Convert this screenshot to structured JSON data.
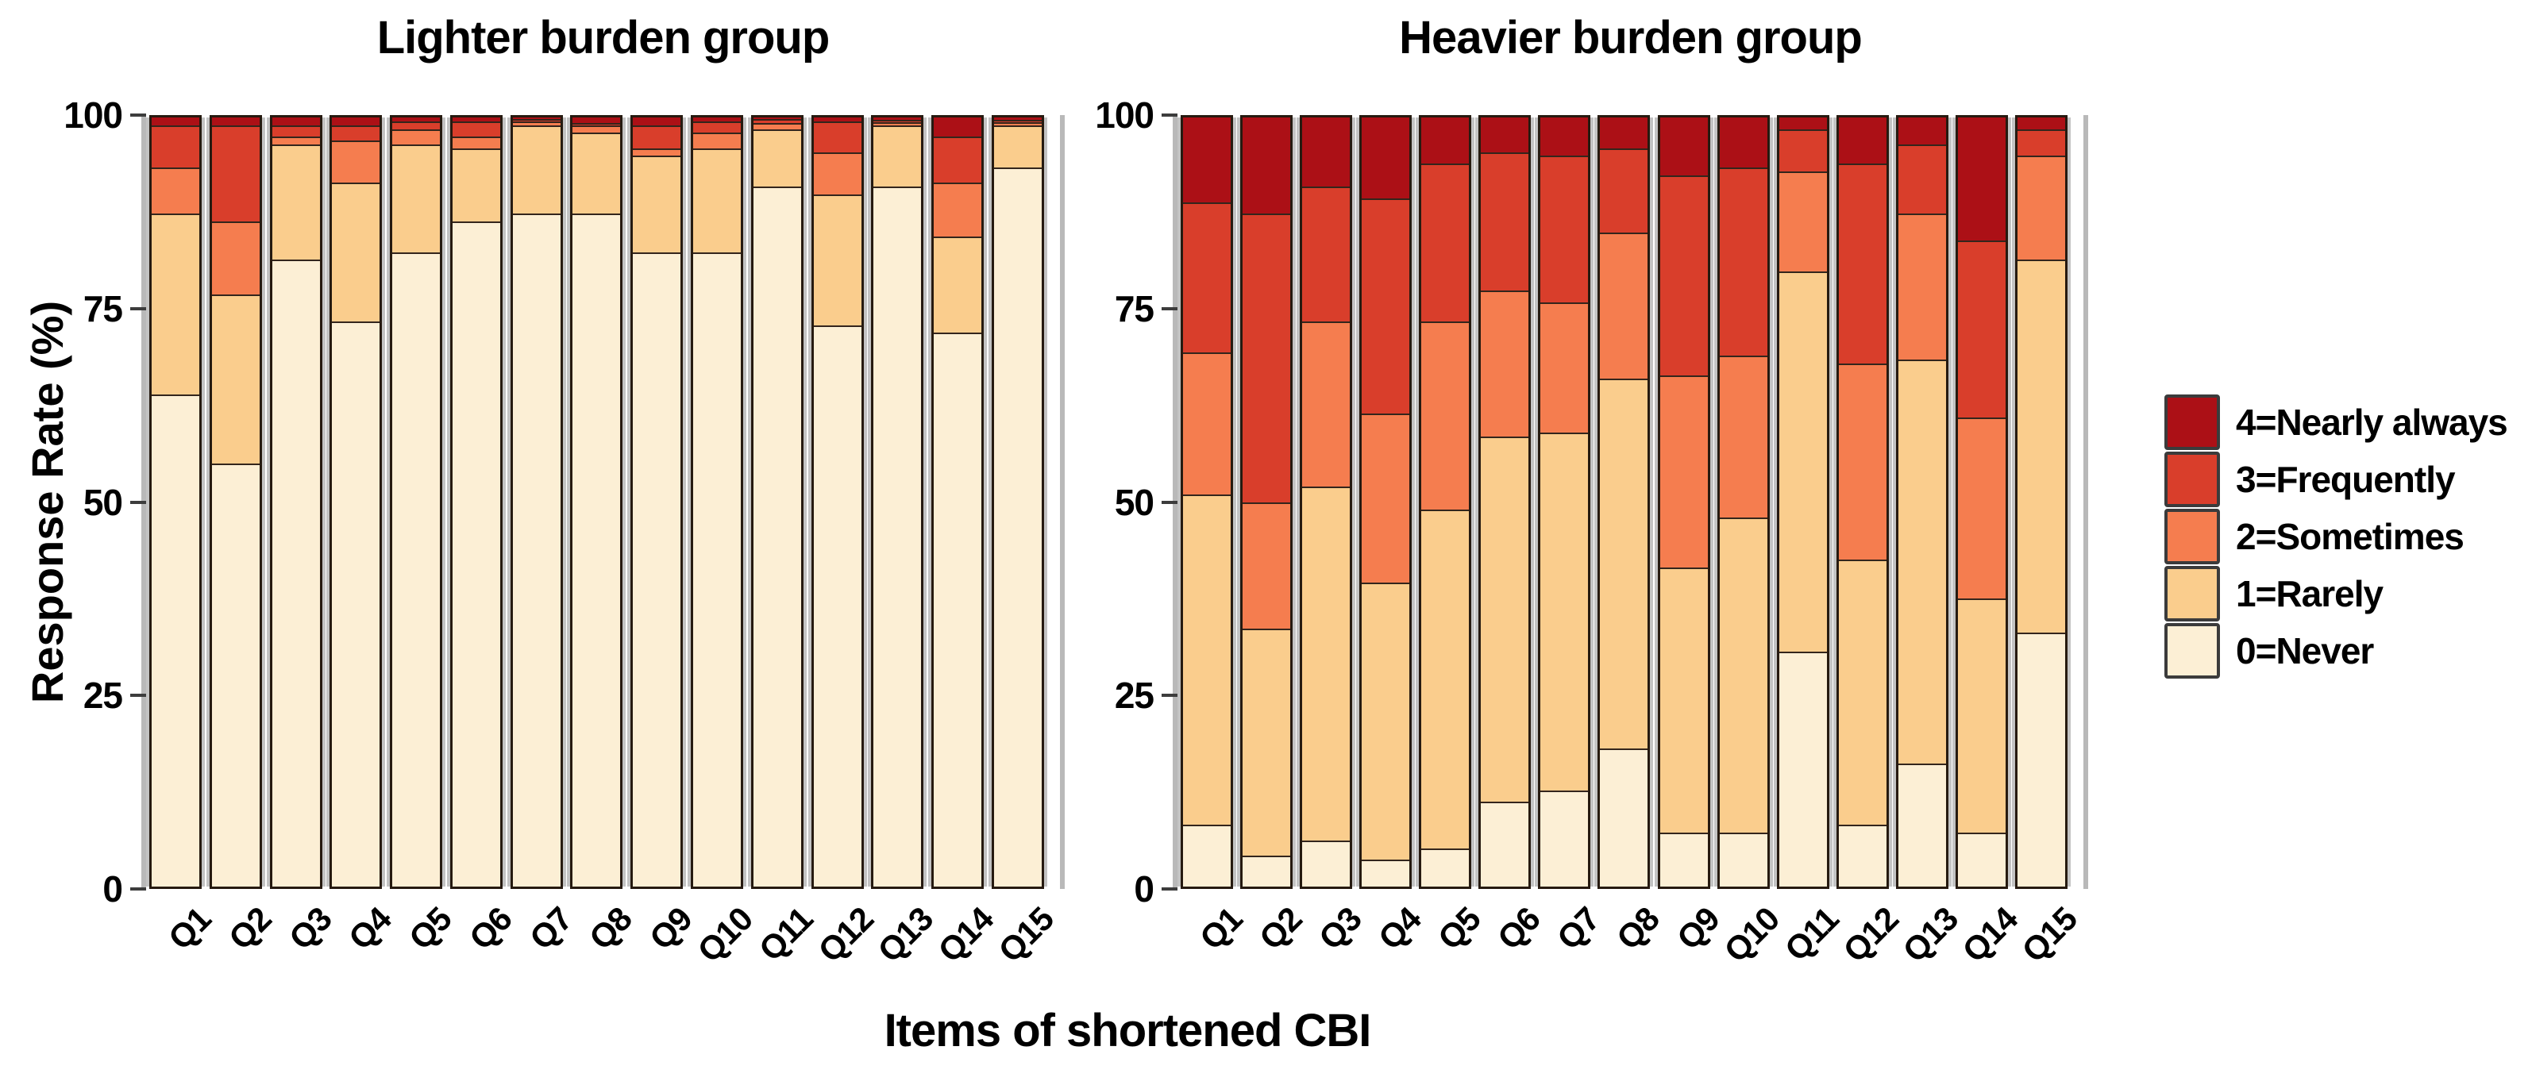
{
  "figure": {
    "xlabel": "Items of shortened CBI",
    "ylabel": "Response Rate (%)"
  },
  "chart_data": {
    "type": "bar",
    "subtype": "stacked-percentage-bar",
    "categories": [
      "Q1",
      "Q2",
      "Q3",
      "Q4",
      "Q5",
      "Q6",
      "Q7",
      "Q8",
      "Q9",
      "Q10",
      "Q11",
      "Q12",
      "Q13",
      "Q14",
      "Q15"
    ],
    "title": "",
    "xlabel": "Items of shortened CBI",
    "ylabel": "Response Rate (%)",
    "ylim": [
      0,
      100
    ],
    "y_ticks": [
      100,
      75,
      50,
      25,
      0
    ],
    "grid": false,
    "legend_position": "right",
    "levels": [
      {
        "key": "never",
        "label": "0=Never",
        "color": "#FCEFD5"
      },
      {
        "key": "rarely",
        "label": "1=Rarely",
        "color": "#FACD8D"
      },
      {
        "key": "sometimes",
        "label": "2=Sometimes",
        "color": "#F57D4F"
      },
      {
        "key": "frequently",
        "label": "3=Frequently",
        "color": "#D93E2B"
      },
      {
        "key": "nearly_always",
        "label": "4=Nearly always",
        "color": "#AC1016"
      }
    ],
    "panels": [
      {
        "title": "Lighter burden group",
        "series": {
          "never": [
            64,
            55,
            81.5,
            73.5,
            82.5,
            86.5,
            87.5,
            87.5,
            82.5,
            82.5,
            91,
            73,
            91,
            72,
            93.5
          ],
          "rarely": [
            23.5,
            22,
            15,
            18,
            14,
            9.5,
            11.5,
            10.5,
            12.5,
            13.5,
            7.5,
            17,
            8,
            12.5,
            5.5
          ],
          "sometimes": [
            6,
            9.5,
            1,
            5.5,
            2,
            1.5,
            0.5,
            1,
            1,
            2,
            0.75,
            5.5,
            0.4,
            7,
            0.4
          ],
          "frequently": [
            5.5,
            12.5,
            1.5,
            2,
            1,
            2,
            0.3,
            0.3,
            3,
            1.5,
            0.5,
            4,
            0.3,
            6,
            0.3
          ],
          "nearly_always": [
            1,
            1,
            1,
            1,
            0.5,
            0.5,
            0.2,
            0.7,
            1,
            0.5,
            0.25,
            0.5,
            0.3,
            2.5,
            0.3
          ]
        }
      },
      {
        "title": "Heavier burden group",
        "series": {
          "never": [
            8,
            4,
            6,
            3.5,
            5,
            11,
            12.5,
            18,
            7,
            7,
            30.5,
            8,
            16,
            7,
            33
          ],
          "rarely": [
            43,
            29.5,
            46,
            36,
            44,
            47.5,
            46.5,
            48,
            34.5,
            41,
            49.5,
            34.5,
            52.5,
            30.5,
            48.5
          ],
          "sometimes": [
            18.5,
            16.5,
            21.5,
            22,
            24.5,
            19,
            17,
            19,
            25,
            21,
            13,
            25.5,
            19,
            23.5,
            13.5
          ],
          "frequently": [
            19.5,
            37.5,
            17.5,
            28,
            20.5,
            18,
            19,
            11,
            26,
            24.5,
            5.5,
            26,
            9,
            23,
            3.5
          ],
          "nearly_always": [
            11,
            12.5,
            9,
            10.5,
            6,
            4.5,
            5,
            4,
            7.5,
            6.5,
            1.5,
            6,
            3.5,
            16,
            1.5
          ]
        }
      }
    ]
  }
}
